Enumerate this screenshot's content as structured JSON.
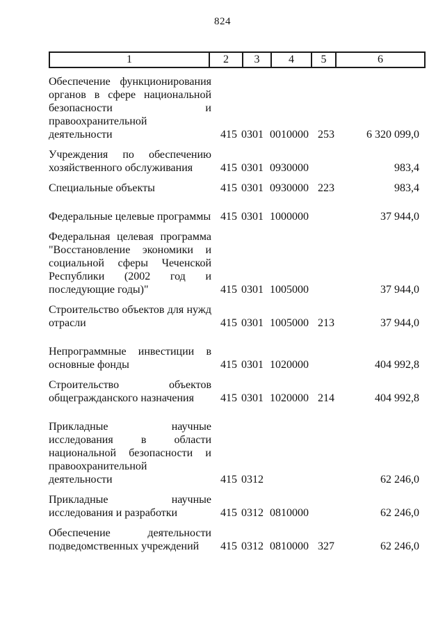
{
  "page": {
    "number": "824"
  },
  "table": {
    "header": [
      "1",
      "2",
      "3",
      "4",
      "5",
      "6"
    ],
    "rows": [
      {
        "name": "Обеспечение функционирования органов в сфере национальной безопасности и правоохранительной деятельности",
        "c2": "415",
        "c3": "0301",
        "c4": "0010000",
        "c5": "253",
        "c6": "6 320 099,0",
        "section_gap": false
      },
      {
        "name": "Учреждения по обеспечению хозяйственного обслуживания",
        "c2": "415",
        "c3": "0301",
        "c4": "0930000",
        "c5": "",
        "c6": "983,4",
        "section_gap": false
      },
      {
        "name": "Специальные объекты",
        "c2": "415",
        "c3": "0301",
        "c4": "0930000",
        "c5": "223",
        "c6": "983,4",
        "section_gap": false
      },
      {
        "name": "Федеральные целевые программы",
        "c2": "415",
        "c3": "0301",
        "c4": "1000000",
        "c5": "",
        "c6": "37 944,0",
        "section_gap": true
      },
      {
        "name": "Федеральная целевая программа \"Восстановление экономики и социальной сферы Чеченской Республики (2002 год и последующие годы)\"",
        "c2": "415",
        "c3": "0301",
        "c4": "1005000",
        "c5": "",
        "c6": "37 944,0",
        "section_gap": false
      },
      {
        "name": "Строительство объектов для нужд отрасли",
        "c2": "415",
        "c3": "0301",
        "c4": "1005000",
        "c5": "213",
        "c6": "37 944,0",
        "section_gap": false
      },
      {
        "name": "Непрограммные инвестиции в основные фонды",
        "c2": "415",
        "c3": "0301",
        "c4": "1020000",
        "c5": "",
        "c6": "404 992,8",
        "section_gap": true
      },
      {
        "name": "Строительство объектов общегражданского назначения",
        "c2": "415",
        "c3": "0301",
        "c4": "1020000",
        "c5": "214",
        "c6": "404 992,8",
        "section_gap": false
      },
      {
        "name": "Прикладные научные исследования в области национальной безопасности и правоохранительной деятельности",
        "c2": "415",
        "c3": "0312",
        "c4": "",
        "c5": "",
        "c6": "62 246,0",
        "section_gap": true
      },
      {
        "name": "Прикладные научные исследования и разработки",
        "c2": "415",
        "c3": "0312",
        "c4": "0810000",
        "c5": "",
        "c6": "62 246,0",
        "section_gap": false
      },
      {
        "name": "Обеспечение деятельности подведомственных учреждений",
        "c2": "415",
        "c3": "0312",
        "c4": "0810000",
        "c5": "327",
        "c6": "62 246,0",
        "section_gap": false
      }
    ]
  }
}
